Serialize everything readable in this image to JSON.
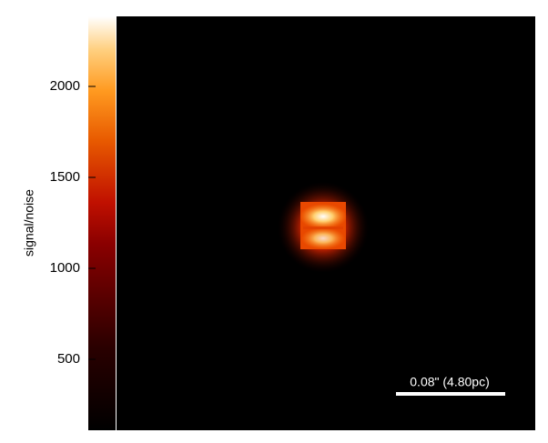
{
  "chart_data": {
    "type": "heatmap",
    "colorbar": {
      "label": "signal/noise",
      "ylim": [
        110,
        2385
      ],
      "yticks": [
        500,
        1000,
        1500,
        2000
      ]
    },
    "scale_bar": {
      "label": "0.08\" (4.80pc)"
    }
  }
}
